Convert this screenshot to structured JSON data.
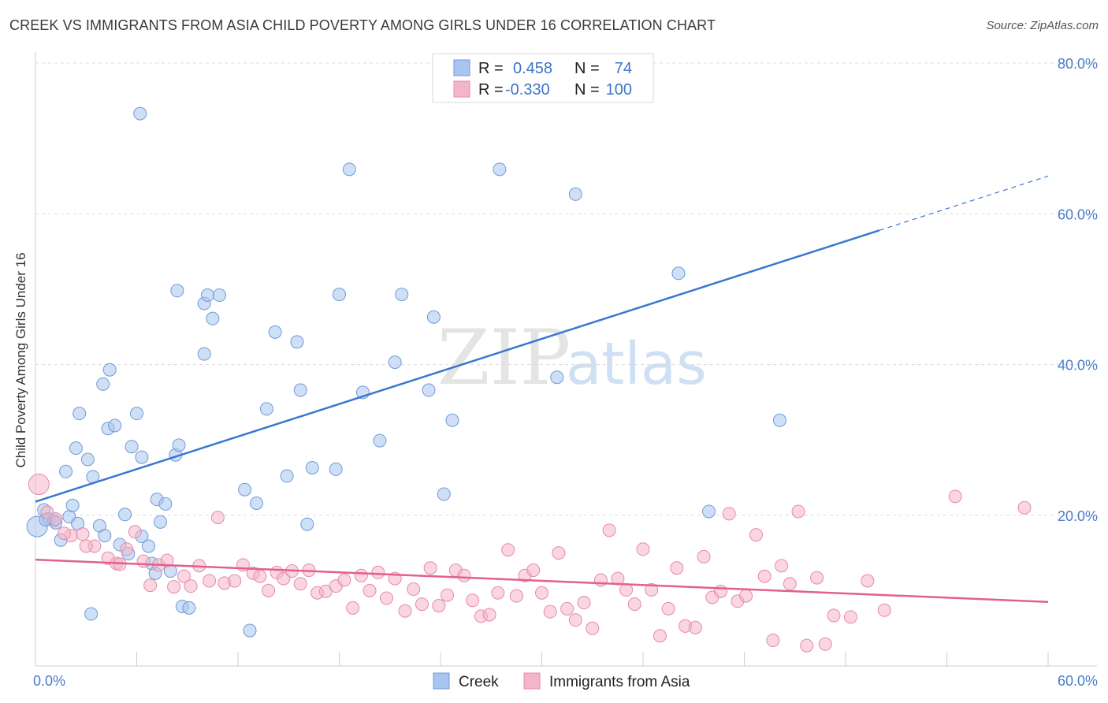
{
  "header": {
    "title": "CREEK VS IMMIGRANTS FROM ASIA CHILD POVERTY AMONG GIRLS UNDER 16 CORRELATION CHART",
    "source": "Source: ZipAtlas.com"
  },
  "watermark": {
    "zip": "ZIP",
    "atlas": "atlas"
  },
  "legend": {
    "rows": [
      {
        "r_label": "R =",
        "r_value": "0.458",
        "n_label": "N =",
        "n_value": "74"
      },
      {
        "r_label": "R =",
        "r_value": "-0.330",
        "n_label": "N =",
        "n_value": "100"
      }
    ]
  },
  "chart_data": {
    "type": "scatter",
    "xlabel": "",
    "ylabel": "Child Poverty Among Girls Under 16",
    "xlim": [
      0,
      60
    ],
    "ylim": [
      0,
      80
    ],
    "x_tick_labels": [
      {
        "value": 0,
        "label": "0.0%"
      },
      {
        "value": 60,
        "label": "60.0%"
      }
    ],
    "y_tick_labels": [
      {
        "value": 20,
        "label": "20.0%"
      },
      {
        "value": 40,
        "label": "40.0%"
      },
      {
        "value": 60,
        "label": "60.0%"
      },
      {
        "value": 80,
        "label": "80.0%"
      }
    ],
    "grid": "horizontal-dashed",
    "legend_position": "top-center",
    "series": [
      {
        "name": "Creek",
        "color": "#a7c5ee",
        "stroke": "#6f9bd8",
        "trend": {
          "x0": 0,
          "y0": 21.8,
          "x1": 50,
          "y1": 57.8,
          "dash_to_x": 60,
          "dash_to_y": 65,
          "color": "#3a78cf"
        },
        "points": [
          [
            0.1,
            18.5
          ],
          [
            0.5,
            20.7
          ],
          [
            0.8,
            19.5
          ],
          [
            1.1,
            19.3
          ],
          [
            1.5,
            16.7
          ],
          [
            1.8,
            25.8
          ],
          [
            2.0,
            19.8
          ],
          [
            2.2,
            21.3
          ],
          [
            2.6,
            33.5
          ],
          [
            2.4,
            28.9
          ],
          [
            3.1,
            27.4
          ],
          [
            3.4,
            25.1
          ],
          [
            3.8,
            18.6
          ],
          [
            4.0,
            37.4
          ],
          [
            4.1,
            17.3
          ],
          [
            4.3,
            31.5
          ],
          [
            4.4,
            39.3
          ],
          [
            4.7,
            31.9
          ],
          [
            5.0,
            16.1
          ],
          [
            5.3,
            20.1
          ],
          [
            5.5,
            14.9
          ],
          [
            5.7,
            29.1
          ],
          [
            6.0,
            33.5
          ],
          [
            6.3,
            27.7
          ],
          [
            6.3,
            17.2
          ],
          [
            6.7,
            15.9
          ],
          [
            6.9,
            13.6
          ],
          [
            7.1,
            12.3
          ],
          [
            7.2,
            22.1
          ],
          [
            7.4,
            19.1
          ],
          [
            7.7,
            21.5
          ],
          [
            8.0,
            12.6
          ],
          [
            8.3,
            28.0
          ],
          [
            8.5,
            29.3
          ],
          [
            8.7,
            7.9
          ],
          [
            9.1,
            7.7
          ],
          [
            8.4,
            49.8
          ],
          [
            10.0,
            48.1
          ],
          [
            10.2,
            49.2
          ],
          [
            10.5,
            46.1
          ],
          [
            10.9,
            49.2
          ],
          [
            10.0,
            41.4
          ],
          [
            12.4,
            23.4
          ],
          [
            12.7,
            4.7
          ],
          [
            13.1,
            21.6
          ],
          [
            13.7,
            34.1
          ],
          [
            14.2,
            44.3
          ],
          [
            14.9,
            25.2
          ],
          [
            15.5,
            43.0
          ],
          [
            15.7,
            36.6
          ],
          [
            16.1,
            18.8
          ],
          [
            16.4,
            26.3
          ],
          [
            17.8,
            26.1
          ],
          [
            18.0,
            49.3
          ],
          [
            19.4,
            36.3
          ],
          [
            20.4,
            29.9
          ],
          [
            21.3,
            40.3
          ],
          [
            21.7,
            49.3
          ],
          [
            23.3,
            36.6
          ],
          [
            23.6,
            46.3
          ],
          [
            24.7,
            32.6
          ],
          [
            24.2,
            22.8
          ],
          [
            3.3,
            6.9
          ],
          [
            6.2,
            73.3
          ],
          [
            18.6,
            65.9
          ],
          [
            27.5,
            65.9
          ],
          [
            32.0,
            62.6
          ],
          [
            30.9,
            38.3
          ],
          [
            38.1,
            52.1
          ],
          [
            39.9,
            20.5
          ],
          [
            44.1,
            32.6
          ],
          [
            1.2,
            19.0
          ],
          [
            2.5,
            18.9
          ],
          [
            0.6,
            19.4
          ]
        ]
      },
      {
        "name": "Immigrants from Asia",
        "color": "#f4b5c9",
        "stroke": "#e88aa8",
        "trend": {
          "x0": 0,
          "y0": 14.1,
          "x1": 60,
          "y1": 8.5,
          "color": "#e2608d"
        },
        "points": [
          [
            0.2,
            24.1
          ],
          [
            0.7,
            20.4
          ],
          [
            1.2,
            19.5
          ],
          [
            2.1,
            17.3
          ],
          [
            2.8,
            17.5
          ],
          [
            3.5,
            15.9
          ],
          [
            4.3,
            14.3
          ],
          [
            4.8,
            13.6
          ],
          [
            5.4,
            15.5
          ],
          [
            5.9,
            17.8
          ],
          [
            6.4,
            13.9
          ],
          [
            6.8,
            10.7
          ],
          [
            7.3,
            13.4
          ],
          [
            7.8,
            14.0
          ],
          [
            8.2,
            10.5
          ],
          [
            8.8,
            11.9
          ],
          [
            9.2,
            10.6
          ],
          [
            9.7,
            13.3
          ],
          [
            10.3,
            11.3
          ],
          [
            10.8,
            19.7
          ],
          [
            11.2,
            11.0
          ],
          [
            11.8,
            11.3
          ],
          [
            12.3,
            13.4
          ],
          [
            12.9,
            12.3
          ],
          [
            13.3,
            11.9
          ],
          [
            13.8,
            10.0
          ],
          [
            14.3,
            12.4
          ],
          [
            14.7,
            11.6
          ],
          [
            15.2,
            12.6
          ],
          [
            15.7,
            10.9
          ],
          [
            16.2,
            12.7
          ],
          [
            16.7,
            9.7
          ],
          [
            17.2,
            9.9
          ],
          [
            17.8,
            10.6
          ],
          [
            18.3,
            11.4
          ],
          [
            18.8,
            7.7
          ],
          [
            19.3,
            12.0
          ],
          [
            19.8,
            10.0
          ],
          [
            20.3,
            12.4
          ],
          [
            20.8,
            9.0
          ],
          [
            21.3,
            11.6
          ],
          [
            21.9,
            7.3
          ],
          [
            22.4,
            10.2
          ],
          [
            22.9,
            8.2
          ],
          [
            23.4,
            13.0
          ],
          [
            23.9,
            8.0
          ],
          [
            24.4,
            9.4
          ],
          [
            24.9,
            12.7
          ],
          [
            25.4,
            12.0
          ],
          [
            25.9,
            8.7
          ],
          [
            26.4,
            6.6
          ],
          [
            26.9,
            6.8
          ],
          [
            27.4,
            9.7
          ],
          [
            28.0,
            15.4
          ],
          [
            28.5,
            9.3
          ],
          [
            29.0,
            12.0
          ],
          [
            29.5,
            12.7
          ],
          [
            30.0,
            9.7
          ],
          [
            30.5,
            7.2
          ],
          [
            31.0,
            15.0
          ],
          [
            31.5,
            7.6
          ],
          [
            32.0,
            6.1
          ],
          [
            32.5,
            8.4
          ],
          [
            33.0,
            5.0
          ],
          [
            33.5,
            11.4
          ],
          [
            34.0,
            18.0
          ],
          [
            34.5,
            11.6
          ],
          [
            35.0,
            10.1
          ],
          [
            35.5,
            8.2
          ],
          [
            36.0,
            15.5
          ],
          [
            36.5,
            10.1
          ],
          [
            37.0,
            4.0
          ],
          [
            37.5,
            7.6
          ],
          [
            38.0,
            13.0
          ],
          [
            38.5,
            5.3
          ],
          [
            39.1,
            5.1
          ],
          [
            39.6,
            14.5
          ],
          [
            40.1,
            9.1
          ],
          [
            40.6,
            9.9
          ],
          [
            41.1,
            20.2
          ],
          [
            41.6,
            8.6
          ],
          [
            42.1,
            9.3
          ],
          [
            42.7,
            17.4
          ],
          [
            43.2,
            11.9
          ],
          [
            43.7,
            3.4
          ],
          [
            44.2,
            13.3
          ],
          [
            44.7,
            10.9
          ],
          [
            45.2,
            20.5
          ],
          [
            45.7,
            2.7
          ],
          [
            46.3,
            11.7
          ],
          [
            46.8,
            2.9
          ],
          [
            47.3,
            6.7
          ],
          [
            48.3,
            6.5
          ],
          [
            49.3,
            11.3
          ],
          [
            50.3,
            7.4
          ],
          [
            54.5,
            22.5
          ],
          [
            58.6,
            21.0
          ],
          [
            1.7,
            17.6
          ],
          [
            3.0,
            15.9
          ],
          [
            5.0,
            13.5
          ]
        ]
      }
    ]
  }
}
